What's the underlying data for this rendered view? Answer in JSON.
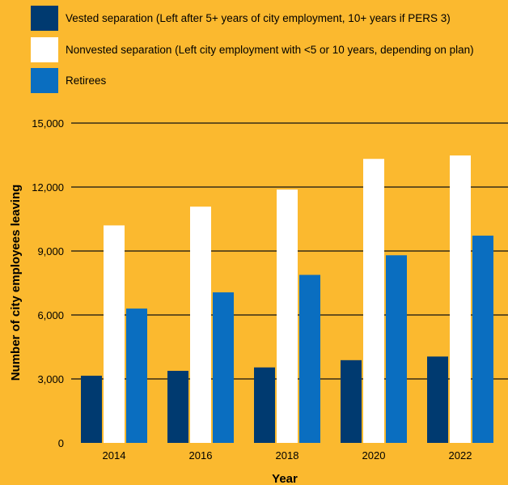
{
  "page": {
    "background": "#FBB92F"
  },
  "chart_data": {
    "type": "bar",
    "categories": [
      "2014",
      "2016",
      "2018",
      "2020",
      "2022"
    ],
    "series": [
      {
        "name": "Vested separation (Left after 5+ years of city employment, 10+ years if PERS 3)",
        "color": "#003A70",
        "values": [
          3150,
          3380,
          3540,
          3880,
          4050
        ]
      },
      {
        "name": "Nonvested separation (Left city employment with <5 or 10 years, depending on plan)",
        "color": "#FFFFFF",
        "values": [
          10200,
          11080,
          11880,
          13320,
          13480
        ]
      },
      {
        "name": "Retirees",
        "color": "#0A6EC0",
        "values": [
          6300,
          7060,
          7880,
          8800,
          9720
        ]
      }
    ],
    "xlabel": "Year",
    "ylabel": "Number of city employees leaving",
    "ylim": [
      0,
      15000
    ],
    "yticks": [
      0,
      3000,
      6000,
      9000,
      12000,
      15000
    ],
    "ytick_labels": [
      "0",
      "3,000",
      "6,000",
      "9,000",
      "12,000",
      "15,000"
    ],
    "grid": "horizontal",
    "legend": "top-left"
  }
}
